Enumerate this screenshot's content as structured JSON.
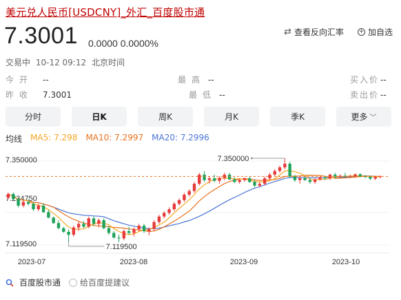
{
  "header": {
    "title": "美元兑人民币[USDCNY]_外汇_百度股市通",
    "price": "7.3001",
    "change": "0.0000 0.0000%",
    "actions": {
      "reverse_label": "查看反向汇率",
      "add_label": "加自选"
    }
  },
  "status": {
    "state": "交易中",
    "time": "10-12 09:12",
    "tz": "北京时间"
  },
  "quote": {
    "open_label": "今开",
    "open_value": "--",
    "high_label": "最高",
    "high_value": "--",
    "bid_label": "买入价",
    "bid_value": "--",
    "prev_label": "昨收",
    "prev_value": "7.3001",
    "low_label": "最低",
    "low_value": "--",
    "ask_label": "卖出价",
    "ask_value": "--"
  },
  "tabs": [
    {
      "label": "分时",
      "active": false
    },
    {
      "label": "日K",
      "active": true
    },
    {
      "label": "周K",
      "active": false
    },
    {
      "label": "月K",
      "active": false
    },
    {
      "label": "季K",
      "active": false
    },
    {
      "label": "更多",
      "active": false,
      "dropdown": true
    }
  ],
  "ma": {
    "label": "均线",
    "ma5": "MA5: 7.298",
    "ma10": "MA10: 7.2997",
    "ma20": "MA20: 7.2996",
    "colors": {
      "ma5": "#f5a623",
      "ma10": "#e8711c",
      "ma20": "#4a74d6",
      "up": "#e83a3a",
      "down": "#1fa35a",
      "dashed": "#e8711c"
    }
  },
  "chart_data": {
    "type": "candlestick",
    "y_labels": {
      "top": "7.350000",
      "mid": "7.234750",
      "bottom": "7.119500"
    },
    "annotations": {
      "max": "7.350000",
      "min": "7.119500"
    },
    "x_labels": [
      "2023-07",
      "2023-08",
      "2023-09",
      "2023-10"
    ],
    "ylim": [
      7.1195,
      7.35
    ],
    "last_close": 7.3001,
    "candles": [
      [
        7.2415,
        7.256,
        7.238,
        7.252
      ],
      [
        7.252,
        7.256,
        7.235,
        7.238
      ],
      [
        7.238,
        7.24,
        7.215,
        7.22
      ],
      [
        7.22,
        7.235,
        7.215,
        7.23
      ],
      [
        7.23,
        7.238,
        7.22,
        7.225
      ],
      [
        7.225,
        7.23,
        7.205,
        7.21
      ],
      [
        7.21,
        7.225,
        7.205,
        7.22
      ],
      [
        7.22,
        7.226,
        7.2,
        7.202
      ],
      [
        7.202,
        7.208,
        7.185,
        7.187
      ],
      [
        7.187,
        7.19,
        7.17,
        7.172
      ],
      [
        7.172,
        7.18,
        7.155,
        7.158
      ],
      [
        7.158,
        7.162,
        7.145,
        7.148
      ],
      [
        7.148,
        7.155,
        7.1195,
        7.14
      ],
      [
        7.14,
        7.165,
        7.135,
        7.16
      ],
      [
        7.16,
        7.175,
        7.15,
        7.17
      ],
      [
        7.17,
        7.178,
        7.158,
        7.162
      ],
      [
        7.162,
        7.19,
        7.158,
        7.185
      ],
      [
        7.185,
        7.19,
        7.165,
        7.17
      ],
      [
        7.17,
        7.185,
        7.16,
        7.18
      ],
      [
        7.18,
        7.185,
        7.155,
        7.158
      ],
      [
        7.158,
        7.165,
        7.14,
        7.145
      ],
      [
        7.145,
        7.15,
        7.13,
        7.132
      ],
      [
        7.132,
        7.14,
        7.1195,
        7.13
      ],
      [
        7.13,
        7.155,
        7.125,
        7.15
      ],
      [
        7.15,
        7.162,
        7.14,
        7.145
      ],
      [
        7.145,
        7.16,
        7.135,
        7.155
      ],
      [
        7.155,
        7.17,
        7.15,
        7.165
      ],
      [
        7.165,
        7.17,
        7.145,
        7.15
      ],
      [
        7.15,
        7.16,
        7.138,
        7.156
      ],
      [
        7.156,
        7.18,
        7.15,
        7.175
      ],
      [
        7.175,
        7.195,
        7.17,
        7.19
      ],
      [
        7.19,
        7.205,
        7.185,
        7.2
      ],
      [
        7.2,
        7.215,
        7.195,
        7.21
      ],
      [
        7.21,
        7.23,
        7.205,
        7.225
      ],
      [
        7.225,
        7.24,
        7.22,
        7.235
      ],
      [
        7.235,
        7.255,
        7.23,
        7.25
      ],
      [
        7.25,
        7.265,
        7.245,
        7.26
      ],
      [
        7.26,
        7.285,
        7.255,
        7.28
      ],
      [
        7.28,
        7.31,
        7.275,
        7.305
      ],
      [
        7.305,
        7.315,
        7.285,
        7.29
      ],
      [
        7.29,
        7.3,
        7.28,
        7.295
      ],
      [
        7.295,
        7.305,
        7.285,
        7.288
      ],
      [
        7.288,
        7.3,
        7.28,
        7.296
      ],
      [
        7.296,
        7.31,
        7.29,
        7.305
      ],
      [
        7.305,
        7.31,
        7.29,
        7.292
      ],
      [
        7.292,
        7.298,
        7.282,
        7.285
      ],
      [
        7.285,
        7.295,
        7.28,
        7.29
      ],
      [
        7.29,
        7.298,
        7.285,
        7.295
      ],
      [
        7.295,
        7.3,
        7.282,
        7.285
      ],
      [
        7.285,
        7.292,
        7.27,
        7.275
      ],
      [
        7.275,
        7.285,
        7.27,
        7.28
      ],
      [
        7.28,
        7.3,
        7.275,
        7.295
      ],
      [
        7.295,
        7.31,
        7.29,
        7.305
      ],
      [
        7.305,
        7.32,
        7.3,
        7.315
      ],
      [
        7.315,
        7.33,
        7.31,
        7.325
      ],
      [
        7.325,
        7.35,
        7.32,
        7.335
      ],
      [
        7.335,
        7.34,
        7.295,
        7.3
      ],
      [
        7.3,
        7.305,
        7.285,
        7.29
      ],
      [
        7.29,
        7.3,
        7.28,
        7.295
      ],
      [
        7.295,
        7.302,
        7.288,
        7.29
      ],
      [
        7.29,
        7.295,
        7.28,
        7.285
      ],
      [
        7.285,
        7.295,
        7.28,
        7.292
      ],
      [
        7.292,
        7.3,
        7.288,
        7.298
      ],
      [
        7.298,
        7.302,
        7.29,
        7.295
      ],
      [
        7.295,
        7.308,
        7.29,
        7.305
      ],
      [
        7.305,
        7.31,
        7.295,
        7.3
      ],
      [
        7.3,
        7.306,
        7.295,
        7.302
      ],
      [
        7.302,
        7.31,
        7.298,
        7.299
      ],
      [
        7.299,
        7.305,
        7.296,
        7.301
      ],
      [
        7.301,
        7.308,
        7.297,
        7.306
      ],
      [
        7.306,
        7.309,
        7.298,
        7.3
      ],
      [
        7.3,
        7.304,
        7.296,
        7.299
      ],
      [
        7.299,
        7.302,
        7.29,
        7.294
      ],
      [
        7.294,
        7.301,
        7.29,
        7.299
      ],
      [
        7.299,
        7.303,
        7.295,
        7.3001
      ]
    ]
  },
  "footer": {
    "brand": "百度股市通",
    "feedback": "给百度提建议"
  }
}
